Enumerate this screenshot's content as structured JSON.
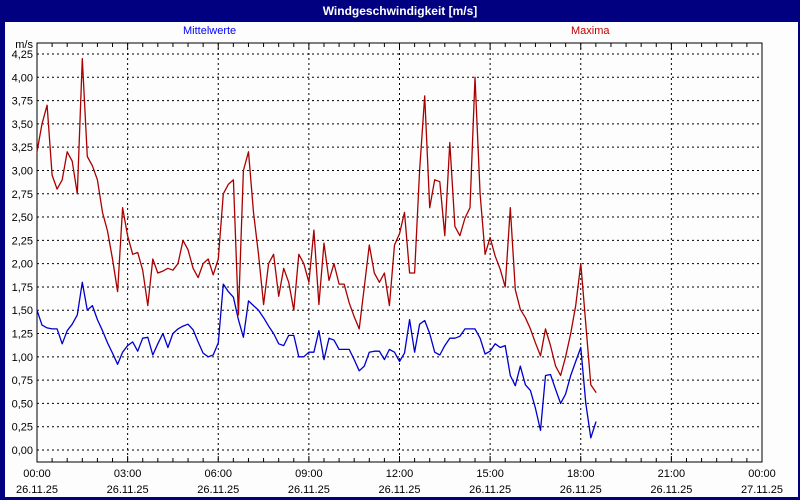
{
  "window": {
    "title": "Windgeschwindigkeit [m/s]"
  },
  "legend": {
    "mittelwerte_label": "Mittelwerte",
    "maxima_label": "Maxima"
  },
  "axis": {
    "unit_label": "m/s",
    "y_tick_labels": [
      "4,25",
      "4,00",
      "3,75",
      "3,50",
      "3,25",
      "3,00",
      "2,75",
      "2,50",
      "2,25",
      "2,00",
      "1,75",
      "1,50",
      "1,25",
      "1,00",
      "0,75",
      "0,50",
      "0,25",
      "0,00"
    ],
    "x_ticks": [
      {
        "time": "00:00",
        "date": "26.11.25"
      },
      {
        "time": "03:00",
        "date": "26.11.25"
      },
      {
        "time": "06:00",
        "date": "26.11.25"
      },
      {
        "time": "09:00",
        "date": "26.11.25"
      },
      {
        "time": "12:00",
        "date": "26.11.25"
      },
      {
        "time": "15:00",
        "date": "26.11.25"
      },
      {
        "time": "18:00",
        "date": "26.11.25"
      },
      {
        "time": "21:00",
        "date": "26.11.25"
      },
      {
        "time": "00:00",
        "date": "27.11.25"
      }
    ]
  },
  "colors": {
    "titlebar": "#000080",
    "frame": "#000000",
    "grid": "#000000",
    "mittelwerte_line": "#0000cd",
    "maxima_line": "#aa0000",
    "axis_text": "#000000"
  },
  "chart_data": {
    "type": "line",
    "title": "Windgeschwindigkeit [m/s]",
    "xlabel": "",
    "ylabel": "m/s",
    "ylim": [
      0,
      4.25
    ],
    "y_tick_step": 0.25,
    "x_axis_hours": [
      0,
      24
    ],
    "x_major_tick_hours": 3,
    "x_minor_tick_hours": 0.5,
    "grid": "dashed",
    "legend_position": "top",
    "x_times": [
      "00:00",
      "00:10",
      "00:20",
      "00:30",
      "00:40",
      "00:50",
      "01:00",
      "01:10",
      "01:20",
      "01:30",
      "01:40",
      "01:50",
      "02:00",
      "02:10",
      "02:20",
      "02:30",
      "02:40",
      "02:50",
      "03:00",
      "03:10",
      "03:20",
      "03:30",
      "03:40",
      "03:50",
      "04:00",
      "04:10",
      "04:20",
      "04:30",
      "04:40",
      "04:50",
      "05:00",
      "05:10",
      "05:20",
      "05:30",
      "05:40",
      "05:50",
      "06:00",
      "06:10",
      "06:20",
      "06:30",
      "06:40",
      "06:50",
      "07:00",
      "07:10",
      "07:20",
      "07:30",
      "07:40",
      "07:50",
      "08:00",
      "08:10",
      "08:20",
      "08:30",
      "08:40",
      "08:50",
      "09:00",
      "09:10",
      "09:20",
      "09:30",
      "09:40",
      "09:50",
      "10:00",
      "10:10",
      "10:20",
      "10:30",
      "10:40",
      "10:50",
      "11:00",
      "11:10",
      "11:20",
      "11:30",
      "11:40",
      "11:50",
      "12:00",
      "12:10",
      "12:20",
      "12:30",
      "12:40",
      "12:50",
      "13:00",
      "13:10",
      "13:20",
      "13:30",
      "13:40",
      "13:50",
      "14:00",
      "14:10",
      "14:20",
      "14:30",
      "14:40",
      "14:50",
      "15:00",
      "15:10",
      "15:20",
      "15:30",
      "15:40",
      "15:50",
      "16:00",
      "16:10",
      "16:20",
      "16:30",
      "16:40",
      "16:50",
      "17:00",
      "17:10",
      "17:20",
      "17:30",
      "17:40",
      "17:50",
      "18:00",
      "18:10",
      "18:20",
      "18:30"
    ],
    "series": [
      {
        "name": "Mittelwerte",
        "color": "#0000cd",
        "values": [
          1.5,
          1.34,
          1.31,
          1.3,
          1.3,
          1.14,
          1.28,
          1.35,
          1.45,
          1.8,
          1.5,
          1.55,
          1.4,
          1.28,
          1.15,
          1.04,
          0.92,
          1.05,
          1.12,
          1.16,
          1.06,
          1.2,
          1.21,
          1.02,
          1.14,
          1.25,
          1.1,
          1.25,
          1.3,
          1.33,
          1.35,
          1.29,
          1.16,
          1.04,
          1.0,
          1.02,
          1.15,
          1.78,
          1.7,
          1.64,
          1.4,
          1.21,
          1.6,
          1.55,
          1.5,
          1.42,
          1.33,
          1.25,
          1.14,
          1.12,
          1.23,
          1.23,
          1.0,
          1.0,
          1.05,
          1.05,
          1.28,
          0.97,
          1.2,
          1.18,
          1.08,
          1.08,
          1.08,
          0.97,
          0.85,
          0.9,
          1.05,
          1.06,
          1.06,
          0.97,
          1.08,
          1.05,
          0.95,
          1.04,
          1.4,
          1.05,
          1.35,
          1.39,
          1.25,
          1.05,
          1.02,
          1.12,
          1.2,
          1.2,
          1.22,
          1.3,
          1.3,
          1.3,
          1.2,
          1.03,
          1.06,
          1.14,
          1.1,
          1.12,
          0.8,
          0.69,
          0.9,
          0.7,
          0.64,
          0.45,
          0.21,
          0.8,
          0.81,
          0.65,
          0.5,
          0.6,
          0.8,
          0.95,
          1.1,
          0.5,
          0.13,
          0.3
        ]
      },
      {
        "name": "Maxima",
        "color": "#aa0000",
        "values": [
          3.2,
          3.5,
          3.7,
          2.95,
          2.8,
          2.9,
          3.2,
          3.1,
          2.75,
          4.2,
          3.15,
          3.05,
          2.9,
          2.55,
          2.35,
          2.05,
          1.7,
          2.6,
          2.3,
          2.1,
          2.12,
          1.93,
          1.55,
          2.05,
          1.9,
          1.92,
          1.95,
          1.93,
          2.0,
          2.25,
          2.15,
          1.95,
          1.85,
          2.0,
          2.05,
          1.88,
          2.05,
          2.75,
          2.85,
          2.9,
          1.45,
          3.0,
          3.2,
          2.55,
          2.1,
          1.56,
          2.0,
          2.1,
          1.65,
          1.95,
          1.8,
          1.5,
          2.1,
          2.0,
          1.8,
          2.36,
          1.56,
          2.22,
          1.82,
          2.0,
          1.78,
          1.78,
          1.58,
          1.43,
          1.3,
          1.75,
          2.2,
          1.9,
          1.8,
          1.9,
          1.55,
          2.2,
          2.32,
          2.55,
          1.9,
          1.9,
          3.0,
          3.8,
          2.6,
          2.9,
          2.88,
          2.3,
          3.3,
          2.4,
          2.3,
          2.49,
          2.6,
          4.0,
          2.75,
          2.1,
          2.28,
          2.08,
          1.94,
          1.75,
          2.6,
          1.72,
          1.51,
          1.42,
          1.3,
          1.15,
          1.01,
          1.3,
          1.12,
          0.9,
          0.8,
          1.0,
          1.25,
          1.55,
          2.0,
          1.35,
          0.7,
          0.62
        ]
      }
    ]
  }
}
